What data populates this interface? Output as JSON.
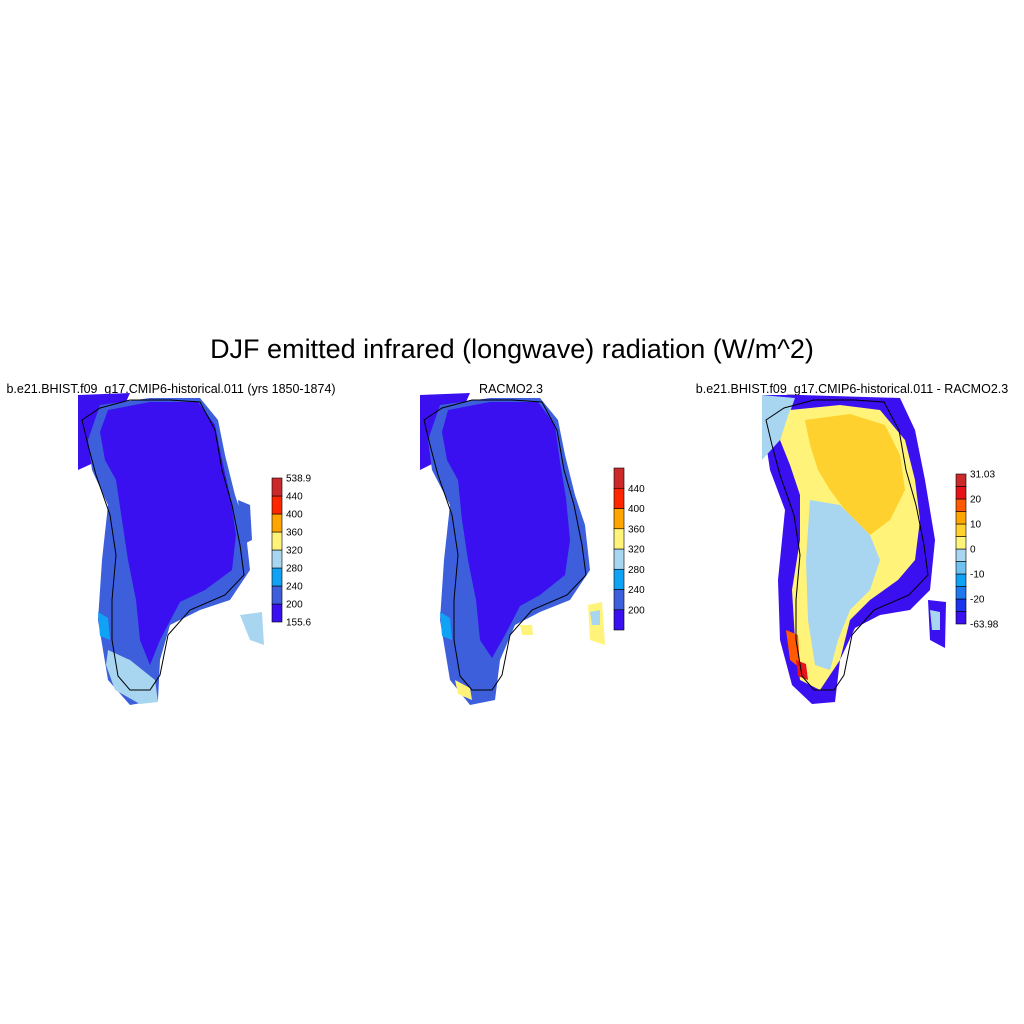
{
  "title": "DJF emitted infrared (longwave) radiation (W/m^2)",
  "panels": [
    {
      "title": "b.e21.BHIST.f09_g17.CMIP6-historical.011 (yrs 1850-1874)",
      "colorbar": {
        "colors": [
          "#3a0ff0",
          "#3d5fdc",
          "#10a3f5",
          "#a8d5f0",
          "#fff37a",
          "#ffa500",
          "#ff2600",
          "#cc2a2a"
        ],
        "labels": [
          "155.6",
          "200",
          "240",
          "280",
          "320",
          "360",
          "400",
          "440",
          "538.9"
        ]
      }
    },
    {
      "title": "RACMO2.3",
      "colorbar": {
        "colors": [
          "#3a0ff0",
          "#3d5fdc",
          "#10a3f5",
          "#a8d5f0",
          "#fff37a",
          "#ffa500",
          "#ff2600",
          "#cc2a2a"
        ],
        "labels": [
          "",
          "200",
          "240",
          "280",
          "320",
          "360",
          "400",
          "440",
          ""
        ]
      }
    },
    {
      "title": "b.e21.BHIST.f09_g17.CMIP6-historical.011 - RACMO2.3",
      "colorbar": {
        "colors": [
          "#3a0ff0",
          "#1a35f0",
          "#1e78f0",
          "#10a3f5",
          "#6ec2ef",
          "#a8d5f0",
          "#fff37a",
          "#ffd12e",
          "#ffa500",
          "#ff5a00",
          "#e8121a",
          "#cc2a2a"
        ],
        "labels": [
          "-63.98",
          "",
          "-20",
          "",
          "-10",
          "",
          "0",
          "",
          "10",
          "",
          "20",
          "",
          "31.03"
        ]
      }
    }
  ]
}
